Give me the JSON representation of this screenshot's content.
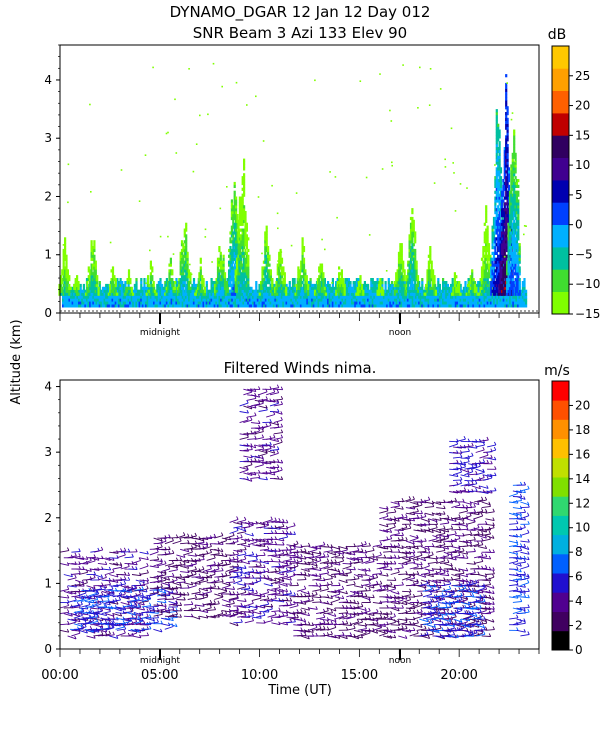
{
  "header": {
    "line1": "DYNAMO_DGAR  12 Jan 12 Day 012",
    "line2": "SNR Beam 3 Azi 133 Elev 90"
  },
  "y_axis_label": "Altitude (km)",
  "chart_data": [
    {
      "type": "heatmap",
      "title": "SNR Beam 3 Azi 133 Elev 90",
      "xlabel": "",
      "ylabel": "Altitude (km)",
      "xlim": [
        0,
        24
      ],
      "ylim": [
        0,
        4.6
      ],
      "y_ticks": [
        0,
        1,
        2,
        3,
        4
      ],
      "x_markers": [
        "midnight",
        "noon"
      ],
      "colorbar": {
        "unit": "dB",
        "range": [
          -15,
          30
        ],
        "ticks": [
          -15,
          -10,
          -5,
          0,
          5,
          10,
          15,
          20,
          25
        ],
        "tick_labels": [
          "−15",
          "−10",
          "−5",
          "0",
          "5",
          "10",
          "15",
          "20",
          "25"
        ],
        "colors": [
          "#80ff00",
          "#40dd30",
          "#00c0a0",
          "#00b0ff",
          "#0040ff",
          "#0000b0",
          "#400090",
          "#300060",
          "#c00000",
          "#ff6000",
          "#ffa000",
          "#ffc800"
        ]
      },
      "echo_columns": [
        {
          "t": 0.2,
          "top": 1.3,
          "snr": -8
        },
        {
          "t": 0.8,
          "top": 0.7,
          "snr": -7
        },
        {
          "t": 1.6,
          "top": 1.5,
          "snr": -6
        },
        {
          "t": 2.6,
          "top": 0.9,
          "snr": -7
        },
        {
          "t": 3.4,
          "top": 0.8,
          "snr": -5
        },
        {
          "t": 4.5,
          "top": 0.9,
          "snr": -6
        },
        {
          "t": 5.5,
          "top": 1.0,
          "snr": -4
        },
        {
          "t": 6.2,
          "top": 2.0,
          "snr": -5
        },
        {
          "t": 7.0,
          "top": 1.0,
          "snr": -6
        },
        {
          "t": 8.0,
          "top": 1.4,
          "snr": -5
        },
        {
          "t": 8.7,
          "top": 2.9,
          "snr": -3
        },
        {
          "t": 9.1,
          "top": 3.3,
          "snr": -8
        },
        {
          "t": 10.3,
          "top": 1.7,
          "snr": -5
        },
        {
          "t": 11.0,
          "top": 1.3,
          "snr": -7
        },
        {
          "t": 12.1,
          "top": 1.4,
          "snr": -6
        },
        {
          "t": 13.0,
          "top": 1.1,
          "snr": -6
        },
        {
          "t": 14.0,
          "top": 0.9,
          "snr": -7
        },
        {
          "t": 15.0,
          "top": 0.7,
          "snr": -8
        },
        {
          "t": 16.0,
          "top": 0.6,
          "snr": -8
        },
        {
          "t": 17.0,
          "top": 1.4,
          "snr": -6
        },
        {
          "t": 17.6,
          "top": 2.1,
          "snr": -5
        },
        {
          "t": 18.5,
          "top": 1.2,
          "snr": -7
        },
        {
          "t": 19.8,
          "top": 0.8,
          "snr": -8
        },
        {
          "t": 20.6,
          "top": 0.9,
          "snr": -6
        },
        {
          "t": 21.3,
          "top": 2.0,
          "snr": -9
        },
        {
          "t": 21.9,
          "top": 4.3,
          "snr": 2
        },
        {
          "t": 22.3,
          "top": 4.6,
          "snr": 10
        },
        {
          "t": 22.7,
          "top": 4.4,
          "snr": -2
        }
      ]
    },
    {
      "type": "scatter",
      "title": "Filtered Winds nima.",
      "xlabel": "Time (UT)",
      "ylabel": "Altitude (km)",
      "xlim": [
        0,
        24
      ],
      "ylim": [
        0,
        4.1
      ],
      "x_ticks": [
        0,
        5,
        10,
        15,
        20
      ],
      "x_tick_labels": [
        "00:00",
        "05:00",
        "10:00",
        "15:00",
        "20:00"
      ],
      "y_ticks": [
        0,
        1,
        2,
        3,
        4
      ],
      "x_markers": [
        "midnight",
        "noon"
      ],
      "colorbar": {
        "unit": "m/s",
        "range": [
          0,
          22
        ],
        "ticks": [
          0,
          2,
          4,
          6,
          8,
          10,
          12,
          14,
          16,
          18,
          20
        ],
        "tick_labels": [
          "0",
          "2",
          "4",
          "6",
          "8",
          "10",
          "12",
          "14",
          "16",
          "18",
          "20"
        ],
        "colors": [
          "#000000",
          "#400060",
          "#500090",
          "#2010d0",
          "#0060ff",
          "#00b0e0",
          "#00c8b0",
          "#30d870",
          "#80e000",
          "#c0e000",
          "#ffc000",
          "#ff9000",
          "#ff5000",
          "#ff0000"
        ]
      },
      "wind_regions": [
        {
          "t0": 0.0,
          "t1": 4.0,
          "z0": 0.2,
          "z1": 1.5,
          "speed": 4
        },
        {
          "t0": 0.5,
          "t1": 5.5,
          "z0": 0.3,
          "z1": 0.9,
          "speed": 6
        },
        {
          "t0": 4.5,
          "t1": 8.5,
          "z0": 0.5,
          "z1": 1.7,
          "speed": 3
        },
        {
          "t0": 8.5,
          "t1": 11.5,
          "z0": 0.4,
          "z1": 2.0,
          "speed": 4
        },
        {
          "t0": 9.0,
          "t1": 10.8,
          "z0": 2.6,
          "z1": 4.0,
          "speed": 4
        },
        {
          "t0": 11.5,
          "t1": 16.0,
          "z0": 0.2,
          "z1": 1.6,
          "speed": 3
        },
        {
          "t0": 16.0,
          "t1": 21.5,
          "z0": 0.2,
          "z1": 2.3,
          "speed": 3
        },
        {
          "t0": 18.0,
          "t1": 21.0,
          "z0": 0.2,
          "z1": 1.0,
          "speed": 6
        },
        {
          "t0": 19.5,
          "t1": 21.5,
          "z0": 2.4,
          "z1": 3.2,
          "speed": 5
        },
        {
          "t0": 22.5,
          "t1": 23.2,
          "z0": 0.2,
          "z1": 2.5,
          "speed": 6
        }
      ]
    }
  ]
}
